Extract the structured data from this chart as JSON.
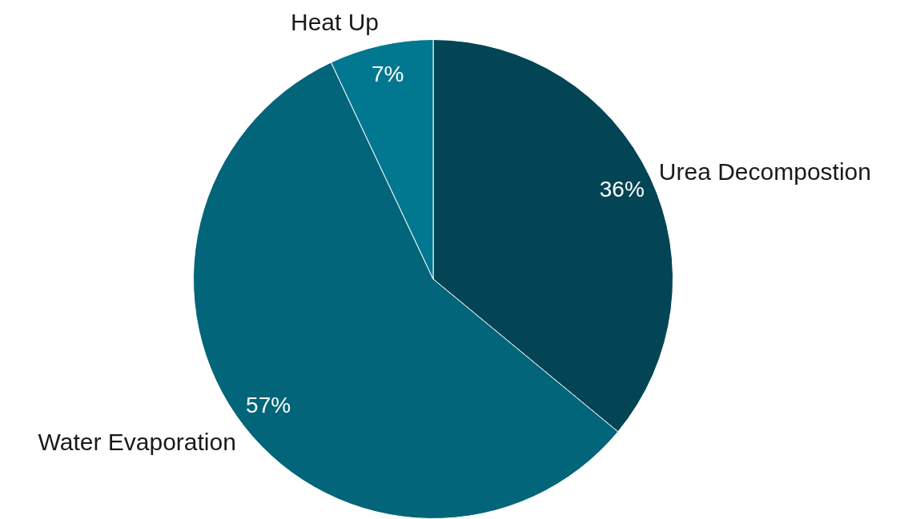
{
  "chart_data": {
    "type": "pie",
    "categories": [
      "Urea Decompostion",
      "Water Evaporation",
      "Heat Up"
    ],
    "values": [
      36,
      57,
      7
    ],
    "colors": [
      "#034555",
      "#02657a",
      "#027890"
    ],
    "value_labels": [
      "36%",
      "57%",
      "7%"
    ],
    "legend": false
  }
}
